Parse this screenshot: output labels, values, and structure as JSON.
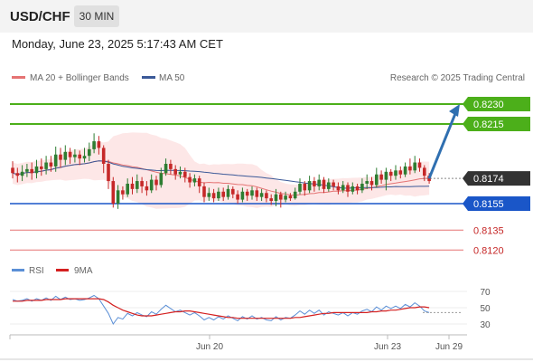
{
  "header": {
    "symbol": "USD/CHF",
    "timeframe": "30 MIN",
    "datetime": "Monday, June 23, 2025 5:17:43 AM CET"
  },
  "legend": {
    "ma_bb": "MA 20 + Bollinger Bands",
    "ma50": "MA 50",
    "rsi": "RSI",
    "ma9": "9MA",
    "credit": "Research © 2025 Trading Central"
  },
  "colors": {
    "up_candle": "#2e7d32",
    "down_candle": "#c62828",
    "ma20": "#e57373",
    "bands": "#fde3e3",
    "ma50": "#3b5998",
    "resistance": "#4caf1a",
    "support": "#1a56c8",
    "target_line": "#e57373",
    "current": "#333333",
    "arrow": "#2f6fb0",
    "rsi": "#5b8fd6",
    "rsi_ma": "#d42020"
  },
  "chart_data": {
    "type": "candlestick",
    "price_range": [
      0.8112,
      0.8243
    ],
    "levels": [
      {
        "value": "0.8230",
        "role": "resistance"
      },
      {
        "value": "0.8215",
        "role": "resistance"
      },
      {
        "value": "0.8174",
        "role": "current"
      },
      {
        "value": "0.8155",
        "role": "support"
      },
      {
        "value": "0.8135",
        "role": "target"
      },
      {
        "value": "0.8120",
        "role": "target"
      }
    ],
    "x_ticks": [
      "Jun 20",
      "Jun 23",
      "Jun 29"
    ],
    "forecast": {
      "from": 0.8174,
      "to": 0.823
    },
    "candles": [
      [
        0.8182,
        0.8178,
        0.8187,
        0.8174
      ],
      [
        0.8178,
        0.8176,
        0.8182,
        0.8171
      ],
      [
        0.8176,
        0.8179,
        0.8184,
        0.8172
      ],
      [
        0.8179,
        0.8181,
        0.8185,
        0.8175
      ],
      [
        0.8181,
        0.8178,
        0.8186,
        0.8173
      ],
      [
        0.8178,
        0.8183,
        0.8188,
        0.8174
      ],
      [
        0.8183,
        0.8181,
        0.8189,
        0.8176
      ],
      [
        0.8181,
        0.8186,
        0.8191,
        0.8177
      ],
      [
        0.8186,
        0.8183,
        0.8191,
        0.8179
      ],
      [
        0.8183,
        0.8192,
        0.8198,
        0.8179
      ],
      [
        0.8192,
        0.8188,
        0.8197,
        0.8182
      ],
      [
        0.8188,
        0.8194,
        0.8199,
        0.8184
      ],
      [
        0.8194,
        0.819,
        0.8197,
        0.8185
      ],
      [
        0.819,
        0.8192,
        0.8196,
        0.8186
      ],
      [
        0.8192,
        0.8189,
        0.8195,
        0.8184
      ],
      [
        0.8189,
        0.8191,
        0.8197,
        0.8186
      ],
      [
        0.8191,
        0.8196,
        0.8201,
        0.8187
      ],
      [
        0.8196,
        0.8202,
        0.8208,
        0.8193
      ],
      [
        0.8202,
        0.8197,
        0.8206,
        0.8192
      ],
      [
        0.8197,
        0.8185,
        0.8199,
        0.8178
      ],
      [
        0.8185,
        0.8172,
        0.8188,
        0.8166
      ],
      [
        0.8172,
        0.8155,
        0.8175,
        0.8152
      ],
      [
        0.8155,
        0.8165,
        0.8169,
        0.8151
      ],
      [
        0.8165,
        0.8162,
        0.8168,
        0.8158
      ],
      [
        0.8162,
        0.817,
        0.8174,
        0.816
      ],
      [
        0.817,
        0.8166,
        0.8175,
        0.8162
      ],
      [
        0.8166,
        0.8172,
        0.8177,
        0.8163
      ],
      [
        0.8172,
        0.8168,
        0.8175,
        0.8163
      ],
      [
        0.8168,
        0.8165,
        0.8172,
        0.8161
      ],
      [
        0.8165,
        0.8173,
        0.8177,
        0.8163
      ],
      [
        0.8173,
        0.8169,
        0.8176,
        0.8165
      ],
      [
        0.8169,
        0.8178,
        0.8182,
        0.8167
      ],
      [
        0.8178,
        0.8185,
        0.8189,
        0.8176
      ],
      [
        0.8185,
        0.8181,
        0.8188,
        0.8177
      ],
      [
        0.8181,
        0.8177,
        0.8184,
        0.8173
      ],
      [
        0.8177,
        0.8179,
        0.8183,
        0.8174
      ],
      [
        0.8179,
        0.8175,
        0.8182,
        0.8171
      ],
      [
        0.8175,
        0.8171,
        0.8178,
        0.8167
      ],
      [
        0.8171,
        0.8174,
        0.8177,
        0.8168
      ],
      [
        0.8174,
        0.8168,
        0.8176,
        0.8163
      ],
      [
        0.8168,
        0.816,
        0.8171,
        0.8156
      ],
      [
        0.816,
        0.8163,
        0.8167,
        0.8157
      ],
      [
        0.8163,
        0.8159,
        0.8166,
        0.8156
      ],
      [
        0.8159,
        0.8164,
        0.8167,
        0.8157
      ],
      [
        0.8164,
        0.816,
        0.8167,
        0.8157
      ],
      [
        0.816,
        0.8166,
        0.8169,
        0.8158
      ],
      [
        0.8166,
        0.8162,
        0.8168,
        0.8159
      ],
      [
        0.8162,
        0.8158,
        0.8165,
        0.8155
      ],
      [
        0.8158,
        0.8164,
        0.8167,
        0.8156
      ],
      [
        0.8164,
        0.8161,
        0.8166,
        0.8157
      ],
      [
        0.8161,
        0.8165,
        0.8168,
        0.8158
      ],
      [
        0.8165,
        0.816,
        0.8167,
        0.8157
      ],
      [
        0.816,
        0.8163,
        0.8166,
        0.8157
      ],
      [
        0.8163,
        0.8159,
        0.8165,
        0.8156
      ],
      [
        0.8159,
        0.8157,
        0.8162,
        0.8154
      ],
      [
        0.8157,
        0.8162,
        0.8166,
        0.8153
      ],
      [
        0.8162,
        0.8158,
        0.8164,
        0.8152
      ],
      [
        0.8158,
        0.8161,
        0.8164,
        0.8156
      ],
      [
        0.8161,
        0.8159,
        0.8163,
        0.8157
      ],
      [
        0.8159,
        0.8164,
        0.8167,
        0.8158
      ],
      [
        0.8164,
        0.817,
        0.8174,
        0.8162
      ],
      [
        0.817,
        0.8165,
        0.8172,
        0.8161
      ],
      [
        0.8165,
        0.8172,
        0.8176,
        0.8163
      ],
      [
        0.8172,
        0.8168,
        0.8175,
        0.8164
      ],
      [
        0.8168,
        0.8173,
        0.8177,
        0.8165
      ],
      [
        0.8173,
        0.8166,
        0.8175,
        0.8163
      ],
      [
        0.8166,
        0.8171,
        0.8174,
        0.8164
      ],
      [
        0.8171,
        0.8168,
        0.8173,
        0.8165
      ],
      [
        0.8168,
        0.8165,
        0.8171,
        0.8162
      ],
      [
        0.8165,
        0.8169,
        0.8172,
        0.8163
      ],
      [
        0.8169,
        0.8164,
        0.8171,
        0.816
      ],
      [
        0.8164,
        0.8168,
        0.8171,
        0.8162
      ],
      [
        0.8168,
        0.8165,
        0.817,
        0.8162
      ],
      [
        0.8165,
        0.817,
        0.8174,
        0.8163
      ],
      [
        0.817,
        0.8172,
        0.8177,
        0.8166
      ],
      [
        0.8172,
        0.8169,
        0.8175,
        0.8165
      ],
      [
        0.8169,
        0.8177,
        0.8182,
        0.8167
      ],
      [
        0.8177,
        0.8173,
        0.818,
        0.817
      ],
      [
        0.8173,
        0.8179,
        0.8182,
        0.8165
      ],
      [
        0.8179,
        0.8176,
        0.8181,
        0.8172
      ],
      [
        0.8176,
        0.818,
        0.8184,
        0.8173
      ],
      [
        0.818,
        0.8177,
        0.8183,
        0.8174
      ],
      [
        0.8177,
        0.8183,
        0.8186,
        0.8175
      ],
      [
        0.8183,
        0.818,
        0.8189,
        0.8177
      ],
      [
        0.818,
        0.8186,
        0.8191,
        0.8178
      ],
      [
        0.8186,
        0.8182,
        0.8189,
        0.8179
      ],
      [
        0.8182,
        0.8176,
        0.8184,
        0.8172
      ],
      [
        0.8176,
        0.8172,
        0.8178,
        0.817
      ]
    ],
    "rsi_axis": {
      "ticks": [
        70,
        50,
        30
      ],
      "range": [
        20,
        80
      ]
    },
    "rsi": [
      60,
      58,
      59,
      61,
      58,
      61,
      59,
      62,
      59,
      64,
      60,
      63,
      60,
      61,
      59,
      60,
      62,
      65,
      61,
      52,
      43,
      30,
      38,
      36,
      43,
      40,
      44,
      41,
      39,
      45,
      42,
      48,
      53,
      49,
      45,
      47,
      44,
      41,
      44,
      40,
      35,
      38,
      35,
      39,
      36,
      40,
      37,
      34,
      39,
      36,
      40,
      36,
      38,
      35,
      34,
      39,
      35,
      38,
      37,
      41,
      46,
      42,
      47,
      43,
      47,
      41,
      45,
      43,
      41,
      44,
      40,
      44,
      42,
      46,
      48,
      45,
      51,
      47,
      52,
      49,
      52,
      49,
      54,
      51,
      56,
      52,
      46,
      44
    ],
    "rsi_ma": [
      58,
      58,
      58,
      59,
      59,
      59,
      59,
      60,
      60,
      60,
      60,
      61,
      61,
      61,
      61,
      61,
      61,
      61,
      61,
      60,
      57,
      53,
      50,
      47,
      45,
      43,
      41,
      40,
      40,
      40,
      41,
      42,
      43,
      44,
      45,
      45,
      46,
      46,
      45,
      44,
      43,
      42,
      41,
      40,
      39,
      38,
      38,
      37,
      37,
      37,
      37,
      37,
      37,
      37,
      37,
      37,
      37,
      37,
      37,
      38,
      38,
      39,
      40,
      41,
      42,
      43,
      43,
      44,
      44,
      44,
      44,
      44,
      44,
      44,
      44,
      45,
      45,
      46,
      46,
      47,
      47,
      48,
      49,
      50,
      50,
      51,
      51,
      50
    ]
  }
}
